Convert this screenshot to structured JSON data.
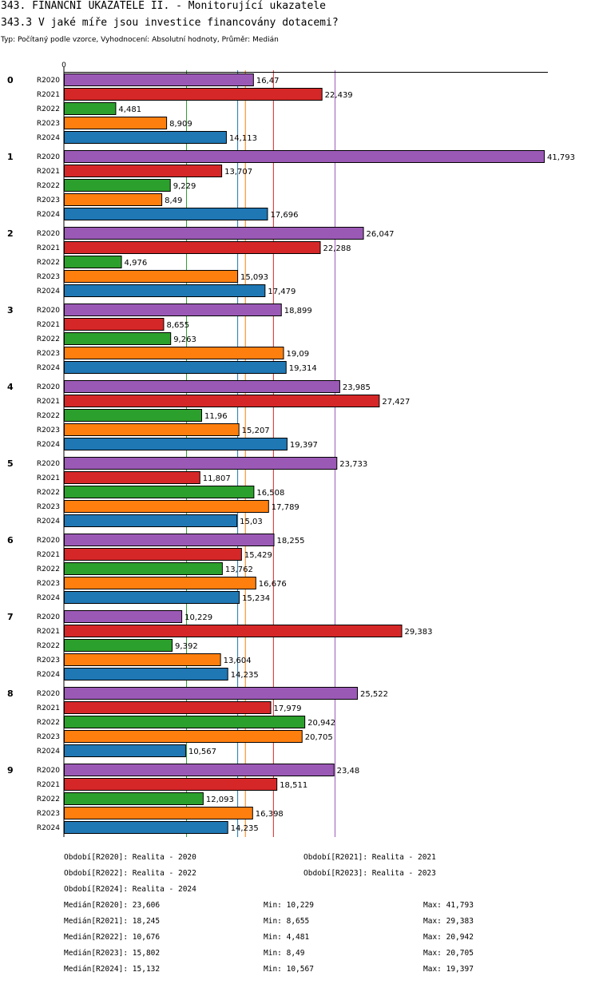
{
  "header": {
    "title": "343. FINANČNÍ UKAZATELE II. - Monitorující ukazatele",
    "question": "343.3 V jaké míře jsou investice financovány dotacemi?",
    "subtitle": "Typ: Počítaný podle vzorce, Vyhodnocení: Absolutní hodnoty, Průměr: Medián"
  },
  "chart_data": {
    "type": "bar",
    "orientation": "horizontal",
    "axis_zero_label": "0",
    "xlim": [
      0,
      42.5
    ],
    "groups": [
      "0",
      "1",
      "2",
      "3",
      "4",
      "5",
      "6",
      "7",
      "8",
      "9"
    ],
    "series": [
      {
        "name": "R2020",
        "color": "#9b59b6",
        "labels": [
          "16,47",
          "41,793",
          "26,047",
          "18,899",
          "23,985",
          "23,733",
          "18,255",
          "10,229",
          "25,522",
          "23,48"
        ],
        "values": [
          16.47,
          41.793,
          26.047,
          18.899,
          23.985,
          23.733,
          18.255,
          10.229,
          25.522,
          23.48
        ]
      },
      {
        "name": "R2021",
        "color": "#d62728",
        "labels": [
          "22,439",
          "13,707",
          "22,288",
          "8,655",
          "27,427",
          "11,807",
          "15,429",
          "29,383",
          "17,979",
          "18,511"
        ],
        "values": [
          22.439,
          13.707,
          22.288,
          8.655,
          27.427,
          11.807,
          15.429,
          29.383,
          17.979,
          18.511
        ]
      },
      {
        "name": "R2022",
        "color": "#2ca02c",
        "labels": [
          "4,481",
          "9,229",
          "4,976",
          "9,263",
          "11,96",
          "16,508",
          "13,762",
          "9,392",
          "20,942",
          "12,093"
        ],
        "values": [
          4.481,
          9.229,
          4.976,
          9.263,
          11.96,
          16.508,
          13.762,
          9.392,
          20.942,
          12.093
        ]
      },
      {
        "name": "R2023",
        "color": "#ff7f0e",
        "labels": [
          "8,909",
          "8,49",
          "15,093",
          "19,09",
          "15,207",
          "17,789",
          "16,676",
          "13,604",
          "20,705",
          "16,398"
        ],
        "values": [
          8.909,
          8.49,
          15.093,
          19.09,
          15.207,
          17.789,
          16.676,
          13.604,
          20.705,
          16.398
        ]
      },
      {
        "name": "R2024",
        "color": "#1f77b4",
        "labels": [
          "14,113",
          "17,696",
          "17,479",
          "19,314",
          "19,397",
          "15,03",
          "15,234",
          "14,235",
          "10,567",
          "14,235"
        ],
        "values": [
          14.113,
          17.696,
          17.479,
          19.314,
          19.397,
          15.03,
          15.234,
          14.235,
          10.567,
          14.235
        ]
      }
    ],
    "medians": [
      {
        "series": "R2020",
        "value": 23.606
      },
      {
        "series": "R2021",
        "value": 18.245
      },
      {
        "series": "R2022",
        "value": 10.676
      },
      {
        "series": "R2023",
        "value": 15.802
      },
      {
        "series": "R2024",
        "value": 15.132
      }
    ]
  },
  "legend": {
    "periods": [
      "Období[R2020]: Realita - 2020",
      "Období[R2021]: Realita - 2021",
      "Období[R2022]: Realita - 2022",
      "Období[R2023]: Realita - 2023",
      "Období[R2024]: Realita - 2024"
    ],
    "stats": [
      {
        "median": "Medián[R2020]: 23,606",
        "min": "Min: 10,229",
        "max": "Max: 41,793"
      },
      {
        "median": "Medián[R2021]: 18,245",
        "min": "Min: 8,655",
        "max": "Max: 29,383"
      },
      {
        "median": "Medián[R2022]: 10,676",
        "min": "Min: 4,481",
        "max": "Max: 20,942"
      },
      {
        "median": "Medián[R2023]: 15,802",
        "min": "Min: 8,49",
        "max": "Max: 20,705"
      },
      {
        "median": "Medián[R2024]: 15,132",
        "min": "Min: 10,567",
        "max": "Max: 19,397"
      }
    ]
  }
}
